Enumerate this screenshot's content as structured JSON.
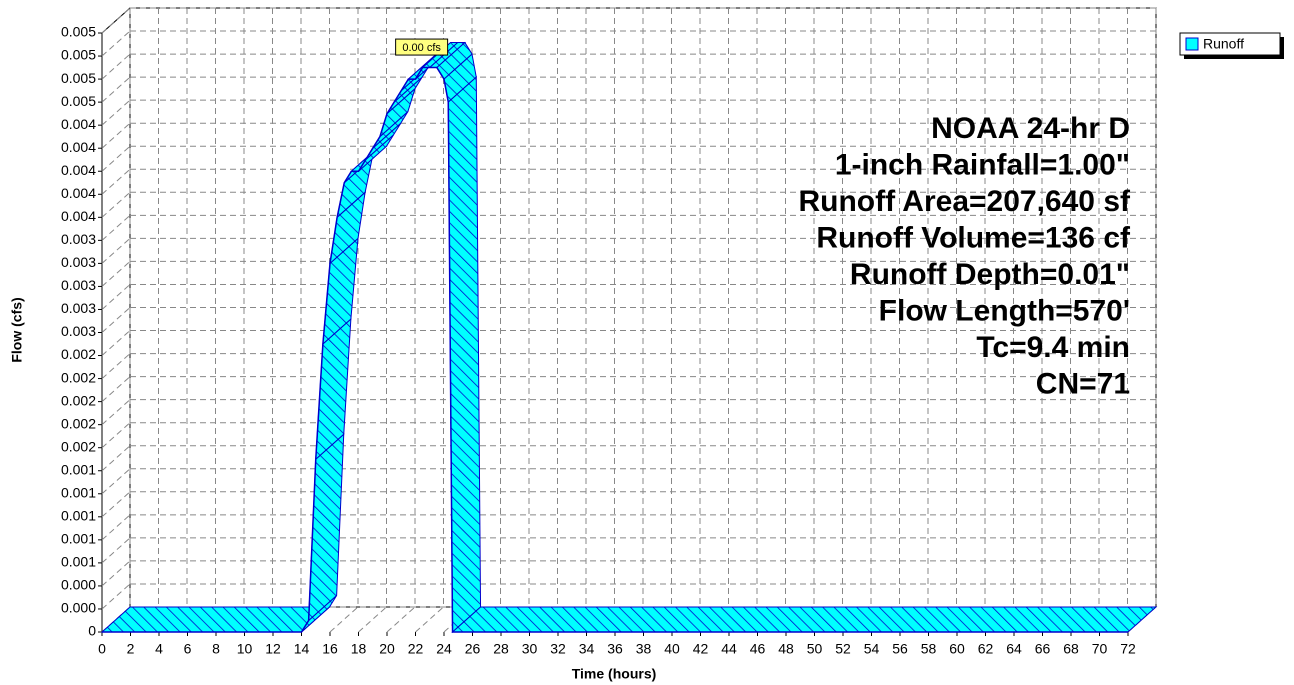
{
  "chart_data": {
    "type": "line",
    "xlabel": "Time  (hours)",
    "ylabel": "Flow  (cfs)",
    "xlim": [
      0,
      72
    ],
    "xticks": [
      0,
      2,
      4,
      6,
      8,
      10,
      12,
      14,
      16,
      18,
      20,
      22,
      24,
      26,
      28,
      30,
      32,
      34,
      36,
      38,
      40,
      42,
      44,
      46,
      48,
      50,
      52,
      54,
      56,
      58,
      60,
      62,
      64,
      66,
      68,
      70,
      72
    ],
    "ylim": [
      0,
      0.0052
    ],
    "yticks": [
      0,
      {
        "value": 0.0002,
        "label": "0.000"
      },
      {
        "value": 0.0004,
        "label": "0.000"
      },
      {
        "value": 0.0006,
        "label": "0.001"
      },
      {
        "value": 0.0008,
        "label": "0.001"
      },
      {
        "value": 0.001,
        "label": "0.001"
      },
      {
        "value": 0.0012,
        "label": "0.001"
      },
      {
        "value": 0.0014,
        "label": "0.001"
      },
      {
        "value": 0.0016,
        "label": "0.002"
      },
      {
        "value": 0.0018,
        "label": "0.002"
      },
      {
        "value": 0.002,
        "label": "0.002"
      },
      {
        "value": 0.0022,
        "label": "0.002"
      },
      {
        "value": 0.0024,
        "label": "0.002"
      },
      {
        "value": 0.0026,
        "label": "0.003"
      },
      {
        "value": 0.0028,
        "label": "0.003"
      },
      {
        "value": 0.003,
        "label": "0.003"
      },
      {
        "value": 0.0032,
        "label": "0.003"
      },
      {
        "value": 0.0034,
        "label": "0.003"
      },
      {
        "value": 0.0036,
        "label": "0.004"
      },
      {
        "value": 0.0038,
        "label": "0.004"
      },
      {
        "value": 0.004,
        "label": "0.004"
      },
      {
        "value": 0.0042,
        "label": "0.004"
      },
      {
        "value": 0.0044,
        "label": "0.004"
      },
      {
        "value": 0.0046,
        "label": "0.005"
      },
      {
        "value": 0.0048,
        "label": "0.005"
      },
      {
        "value": 0.005,
        "label": "0.005"
      },
      {
        "value": 0.0052,
        "label": "0.005"
      }
    ],
    "grid": true,
    "legend": "upper right",
    "x": [
      0,
      14,
      14.5,
      15,
      15.5,
      16,
      16.5,
      17,
      17.5,
      18,
      18.5,
      19,
      19.5,
      20,
      20.5,
      21,
      21.5,
      22,
      22.5,
      23,
      23.5,
      24,
      24.3,
      24.6,
      72
    ],
    "series": [
      {
        "name": "Runoff",
        "color": "#00ffff",
        "values": [
          0,
          0,
          0.0001,
          0.0015,
          0.0025,
          0.0032,
          0.0036,
          0.0039,
          0.004,
          0.004,
          0.0041,
          0.0042,
          0.0043,
          0.0045,
          0.0046,
          0.0047,
          0.0048,
          0.0048,
          0.0049,
          0.0049,
          0.0049,
          0.0048,
          0.0046,
          0,
          0
        ]
      }
    ],
    "annotations": [
      "0.00 cfs"
    ],
    "info_lines": [
      "NOAA 24-hr D",
      "1-inch Rainfall=1.00\"",
      "Runoff Area=207,640 sf",
      "Runoff Volume=136 cf",
      "Runoff Depth=0.01\"",
      "Flow Length=570'",
      "Tc=9.4 min",
      "CN=71"
    ]
  }
}
